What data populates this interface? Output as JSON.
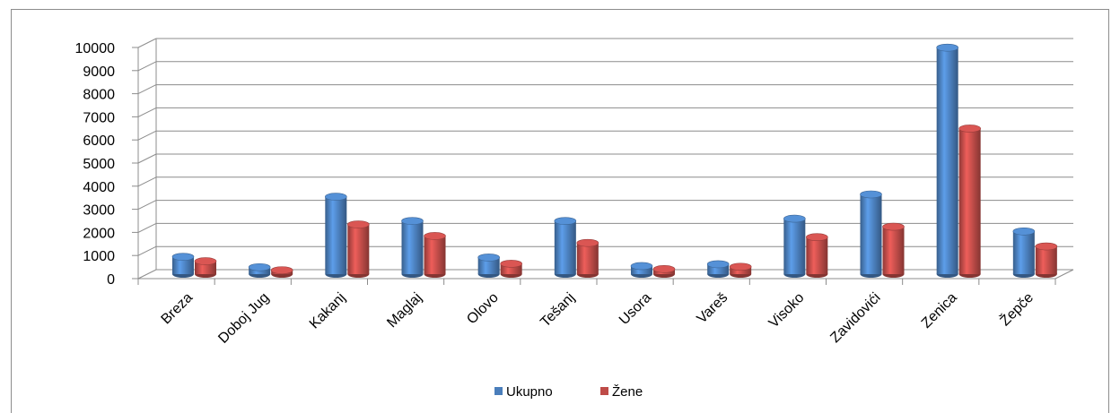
{
  "chart_data": {
    "type": "bar",
    "categories": [
      "Breza",
      "Doboj Jug",
      "Kakanj",
      "Maglaj",
      "Olovo",
      "Tešanj",
      "Usora",
      "Vareš",
      "Visoko",
      "Zavidovići",
      "Zenica",
      "Žepče"
    ],
    "series": [
      {
        "name": "Ukupno",
        "values": [
          750,
          300,
          3350,
          2300,
          720,
          2300,
          350,
          430,
          2400,
          3450,
          9800,
          1850
        ],
        "color": "#4a7ebb"
      },
      {
        "name": "Žene",
        "values": [
          560,
          170,
          2150,
          1650,
          450,
          1350,
          220,
          320,
          1600,
          2050,
          6300,
          1200
        ],
        "color": "#be4b48"
      }
    ],
    "yticks": [
      "0",
      "1000",
      "2000",
      "3000",
      "4000",
      "5000",
      "6000",
      "7000",
      "8000",
      "9000",
      "10000"
    ],
    "ylim": [
      0,
      10000
    ],
    "grid": true,
    "legend_position": "bottom"
  }
}
